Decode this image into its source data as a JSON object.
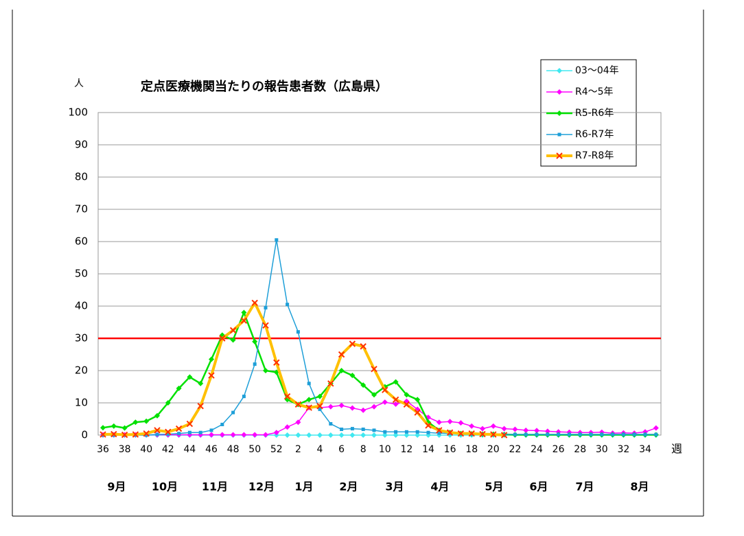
{
  "chart_data": {
    "type": "line",
    "title": "定点医療機関当たりの報告患者数（広島県）",
    "y_label": "人",
    "x_label": "週",
    "categories": [
      "36",
      null,
      "38",
      null,
      "40",
      null,
      "42",
      null,
      "44",
      null,
      "46",
      null,
      "48",
      null,
      "50",
      null,
      "52",
      null,
      "2",
      null,
      "4",
      null,
      "6",
      null,
      "8",
      null,
      "10",
      null,
      "12",
      null,
      "14",
      null,
      "16",
      null,
      "18",
      null,
      "20",
      null,
      "22",
      null,
      "24",
      null,
      "26",
      null,
      "28",
      null,
      "30",
      null,
      "32",
      null,
      "34",
      null
    ],
    "month_labels": [
      "9月",
      "10月",
      "11月",
      "12月",
      "1月",
      "2月",
      "3月",
      "4月",
      "5月",
      "6月",
      "7月",
      "8月"
    ],
    "ylim": [
      0,
      100
    ],
    "yticks": [
      0,
      10,
      20,
      30,
      40,
      50,
      60,
      70,
      80,
      90,
      100
    ],
    "grid": true,
    "legend": "upper right",
    "threshold": {
      "value": 30,
      "color": "#ff0000"
    },
    "series": [
      {
        "name": "03～04年",
        "color": "#40e8f0",
        "marker": "diamond",
        "width": 1.5,
        "values": [
          0,
          0,
          0,
          0,
          0,
          0,
          0,
          0,
          0,
          0,
          0,
          0,
          0,
          0,
          0,
          0,
          0,
          0,
          0,
          0,
          0,
          0,
          0,
          0,
          0,
          0,
          0,
          0,
          0,
          0,
          0,
          0,
          0,
          0,
          0,
          0,
          0,
          0,
          0,
          0,
          0,
          0,
          0,
          0,
          0,
          0,
          0,
          0,
          0,
          0,
          0,
          0
        ]
      },
      {
        "name": "R4～5年",
        "color": "#ff00ff",
        "marker": "diamond",
        "width": 1.5,
        "values": [
          0.1,
          0.1,
          0.1,
          0.1,
          0.1,
          0.1,
          0.1,
          0.1,
          0.1,
          0.1,
          0.1,
          0.1,
          0.1,
          0.1,
          0.1,
          0.1,
          0.8,
          2.5,
          4,
          8.5,
          8.5,
          8.8,
          9.2,
          8.4,
          7.7,
          8.8,
          10.2,
          9.6,
          10.5,
          8,
          5.5,
          4,
          4.2,
          3.8,
          2.8,
          2,
          2.8,
          2,
          1.8,
          1.5,
          1.4,
          1.2,
          1,
          0.9,
          0.8,
          0.8,
          0.9,
          0.6,
          0.7,
          0.6,
          1,
          2.2
        ]
      },
      {
        "name": "R5-R6年",
        "color": "#00e000",
        "marker": "diamond",
        "width": 2.5,
        "values": [
          2.3,
          2.8,
          2.2,
          4,
          4.3,
          6,
          10,
          14.5,
          18,
          16,
          23.5,
          31,
          29.5,
          38,
          29,
          20,
          19.5,
          11,
          9.5,
          11,
          12,
          16,
          20,
          18.5,
          15.5,
          12.5,
          15,
          16.5,
          12.5,
          11,
          4,
          1.5,
          0.8,
          0.5,
          0.4,
          0.3,
          0.3,
          0.2,
          0.1,
          0.1,
          0.1,
          0.1,
          0.1,
          0.1,
          0.1,
          0.1,
          0.1,
          0.1,
          0.1,
          0.1,
          0.1,
          0.1
        ]
      },
      {
        "name": "R6-R7年",
        "color": "#1e9fd8",
        "marker": "square",
        "width": 1.5,
        "values": [
          0,
          0,
          0,
          0,
          0,
          0.2,
          0.3,
          0.5,
          0.8,
          0.8,
          1.5,
          3.3,
          7,
          12,
          22,
          39.5,
          60.5,
          40.5,
          32,
          16,
          8,
          3.5,
          1.8,
          2,
          1.8,
          1.5,
          1,
          1,
          1,
          1,
          0.8,
          0.6,
          0.5,
          0.4,
          0.3,
          0.3,
          0.2,
          0.2,
          0.2,
          0.2,
          0.2,
          0.2,
          0.2,
          0.2,
          0.2,
          0.2,
          0.2,
          0.2,
          0.2,
          0.2,
          0.2,
          0.2
        ]
      },
      {
        "name": "R7-R8年",
        "color": "#ffc000",
        "marker": "x",
        "marker_color": "#ff3000",
        "width": 4,
        "values": [
          0.2,
          0.3,
          0.1,
          0.2,
          0.5,
          1.5,
          1,
          2,
          3.5,
          9,
          18.5,
          30,
          32.5,
          35.5,
          41,
          34,
          22.5,
          12,
          9.5,
          8.5,
          9,
          16,
          25,
          28.3,
          27.5,
          20.5,
          14,
          11,
          9.5,
          7,
          3,
          1.5,
          0.8,
          0.5,
          0.5,
          0.3,
          0.2,
          0,
          null,
          null,
          null,
          null,
          null,
          null,
          null,
          null,
          null,
          null,
          null,
          null,
          null,
          null
        ]
      }
    ]
  }
}
